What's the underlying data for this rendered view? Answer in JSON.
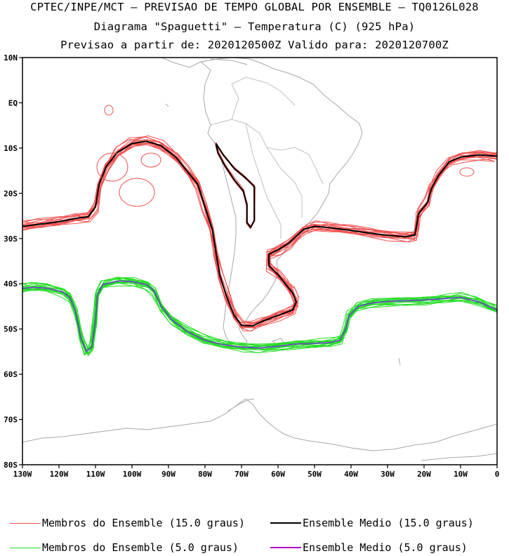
{
  "titles": {
    "line1": "CPTEC/INPE/MCT — PREVISAO DE TEMPO GLOBAL POR ENSEMBLE — TQ0126L028",
    "line2": "Diagrama \"Spaguetti\" — Temperatura (C) (925 hPa)",
    "line3": "Previsao a partir de: 2020120500Z  Valido para: 2020120700Z"
  },
  "map": {
    "lon_range": [
      -130,
      0
    ],
    "lat_range": [
      -80,
      10
    ],
    "lat_ticks": [
      {
        "lat": 10,
        "label": "10N"
      },
      {
        "lat": 0,
        "label": "EQ"
      },
      {
        "lat": -10,
        "label": "10S"
      },
      {
        "lat": -20,
        "label": "20S"
      },
      {
        "lat": -30,
        "label": "30S"
      },
      {
        "lat": -40,
        "label": "40S"
      },
      {
        "lat": -50,
        "label": "50S"
      },
      {
        "lat": -60,
        "label": "60S"
      },
      {
        "lat": -70,
        "label": "70S"
      },
      {
        "lat": -80,
        "label": "80S"
      }
    ],
    "lon_ticks": [
      {
        "lon": -130,
        "label": "130W"
      },
      {
        "lon": -120,
        "label": "120W"
      },
      {
        "lon": -110,
        "label": "110W"
      },
      {
        "lon": -100,
        "label": "100W"
      },
      {
        "lon": -90,
        "label": "90W"
      },
      {
        "lon": -80,
        "label": "80W"
      },
      {
        "lon": -70,
        "label": "70W"
      },
      {
        "lon": -60,
        "label": "60W"
      },
      {
        "lon": -50,
        "label": "50W"
      },
      {
        "lon": -40,
        "label": "40W"
      },
      {
        "lon": -30,
        "label": "30W"
      },
      {
        "lon": -20,
        "label": "20W"
      },
      {
        "lon": -10,
        "label": "10W"
      },
      {
        "lon": 0,
        "label": "0"
      }
    ],
    "contour_15_mean": [
      [
        -130,
        -27.3
      ],
      [
        -125,
        -26.8
      ],
      [
        -120,
        -26.3
      ],
      [
        -115,
        -25.5
      ],
      [
        -112,
        -25.2
      ],
      [
        -110,
        -23
      ],
      [
        -109,
        -18
      ],
      [
        -107,
        -14
      ],
      [
        -104,
        -11
      ],
      [
        -100,
        -9
      ],
      [
        -96,
        -8.5
      ],
      [
        -92,
        -9.5
      ],
      [
        -88,
        -12
      ],
      [
        -85,
        -15
      ],
      [
        -82,
        -18
      ],
      [
        -80,
        -23
      ],
      [
        -78,
        -28
      ],
      [
        -77,
        -33
      ],
      [
        -76,
        -38
      ],
      [
        -74,
        -43
      ],
      [
        -72,
        -47
      ],
      [
        -70,
        -49.2
      ],
      [
        -67,
        -49.3
      ],
      [
        -64,
        -48.2
      ],
      [
        -60,
        -47
      ],
      [
        -56,
        -45.8
      ],
      [
        -55,
        -44
      ],
      [
        -56,
        -42
      ],
      [
        -58,
        -40
      ],
      [
        -60,
        -38
      ],
      [
        -62.5,
        -36
      ],
      [
        -62.5,
        -33.5
      ],
      [
        -60,
        -32.5
      ],
      [
        -57,
        -31
      ],
      [
        -53,
        -28
      ],
      [
        -50,
        -27.3
      ],
      [
        -46,
        -27.6
      ],
      [
        -40,
        -28.2
      ],
      [
        -35,
        -28.8
      ],
      [
        -30,
        -29.3
      ],
      [
        -25,
        -29.6
      ],
      [
        -22.5,
        -29.2
      ],
      [
        -22,
        -27
      ],
      [
        -21.5,
        -24.5
      ],
      [
        -19,
        -22
      ],
      [
        -18,
        -19
      ],
      [
        -16,
        -16
      ],
      [
        -13,
        -13
      ],
      [
        -10,
        -12
      ],
      [
        -5,
        -11.5
      ],
      [
        0,
        -11.8
      ]
    ],
    "contour_15_secondary": [
      [
        -77,
        -9
      ],
      [
        -75,
        -11.5
      ],
      [
        -72,
        -14.5
      ],
      [
        -69,
        -16.5
      ],
      [
        -66.5,
        -18.5
      ],
      [
        -66.5,
        -22
      ],
      [
        -66.5,
        -26
      ],
      [
        -67.5,
        -27.5
      ],
      [
        -68.5,
        -26.5
      ],
      [
        -68.5,
        -22.5
      ],
      [
        -69.5,
        -19.5
      ],
      [
        -72,
        -17
      ],
      [
        -74.5,
        -14
      ],
      [
        -76.5,
        -11
      ],
      [
        -77,
        -9
      ]
    ],
    "contour_5_mean": [
      [
        -130,
        -41
      ],
      [
        -127,
        -40.8
      ],
      [
        -123,
        -41
      ],
      [
        -119,
        -41.8
      ],
      [
        -117,
        -43
      ],
      [
        -115.5,
        -46
      ],
      [
        -114,
        -52
      ],
      [
        -112.5,
        -55
      ],
      [
        -111,
        -54
      ],
      [
        -110,
        -48
      ],
      [
        -109.5,
        -42.5
      ],
      [
        -108,
        -40.2
      ],
      [
        -104,
        -39.4
      ],
      [
        -100,
        -39.5
      ],
      [
        -96,
        -40.2
      ],
      [
        -94,
        -41.5
      ],
      [
        -92,
        -45
      ],
      [
        -89,
        -48
      ],
      [
        -85,
        -50.5
      ],
      [
        -80,
        -52.5
      ],
      [
        -75,
        -53.5
      ],
      [
        -70,
        -54
      ],
      [
        -65,
        -54.2
      ],
      [
        -60,
        -53.8
      ],
      [
        -55,
        -53.3
      ],
      [
        -50,
        -53.2
      ],
      [
        -46,
        -53
      ],
      [
        -43,
        -52.5
      ],
      [
        -41.5,
        -50
      ],
      [
        -40.5,
        -47
      ],
      [
        -38,
        -45
      ],
      [
        -34,
        -44.2
      ],
      [
        -28,
        -43.8
      ],
      [
        -20,
        -43.6
      ],
      [
        -15,
        -43.3
      ],
      [
        -10,
        -43
      ],
      [
        -5,
        -44
      ],
      [
        0,
        -45.8
      ]
    ]
  },
  "legend": {
    "members_15": {
      "label": "Membros do Ensemble (15.0 graus)",
      "color": "#f05050"
    },
    "mean_15": {
      "label": "Ensemble Medio (15.0 graus)",
      "color": "#000000"
    },
    "members_5": {
      "label": "Membros do Ensemble (5.0 graus)",
      "color": "#22dd22"
    },
    "mean_5": {
      "label": "Ensemble Medio (5.0 graus)",
      "color": "#aa00cc"
    }
  }
}
